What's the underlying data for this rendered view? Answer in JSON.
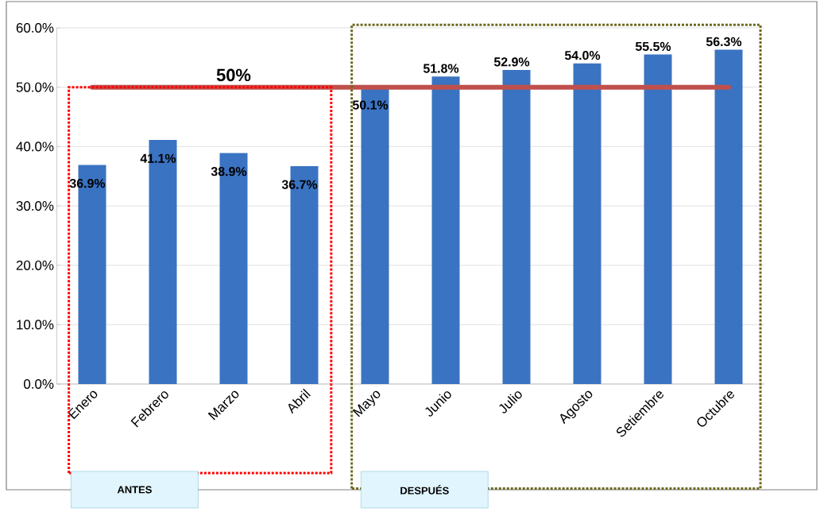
{
  "chart_data": {
    "type": "bar",
    "categories": [
      "Enero",
      "Febrero",
      "Marzo",
      "Abril",
      "Mayo",
      "Junio",
      "Julio",
      "Agosto",
      "Setiembre",
      "Octubre"
    ],
    "values": [
      36.9,
      41.1,
      38.9,
      36.7,
      50.1,
      51.8,
      52.9,
      54.0,
      55.5,
      56.3
    ],
    "value_labels": [
      "36.9%",
      "41.1%",
      "38.9%",
      "36.7%",
      "50.1%",
      "51.8%",
      "52.9%",
      "54.0%",
      "55.5%",
      "56.3%"
    ],
    "color": "#3a73c2",
    "ylim": [
      0,
      60
    ],
    "yticks": [
      {
        "value": 0,
        "label": "0.0%"
      },
      {
        "value": 10,
        "label": "10.0%"
      },
      {
        "value": 20,
        "label": "20.0%"
      },
      {
        "value": 30,
        "label": "30.0%"
      },
      {
        "value": 40,
        "label": "40.0%"
      },
      {
        "value": 50,
        "label": "50.0%"
      },
      {
        "value": 60,
        "label": "60.0%"
      }
    ],
    "grid": "y",
    "ref_lines": [
      {
        "axis": "y",
        "value": 50,
        "label": "50%",
        "color": "#c0504d"
      }
    ],
    "annotations": [
      "ANTES",
      "DESPUÉS"
    ]
  }
}
